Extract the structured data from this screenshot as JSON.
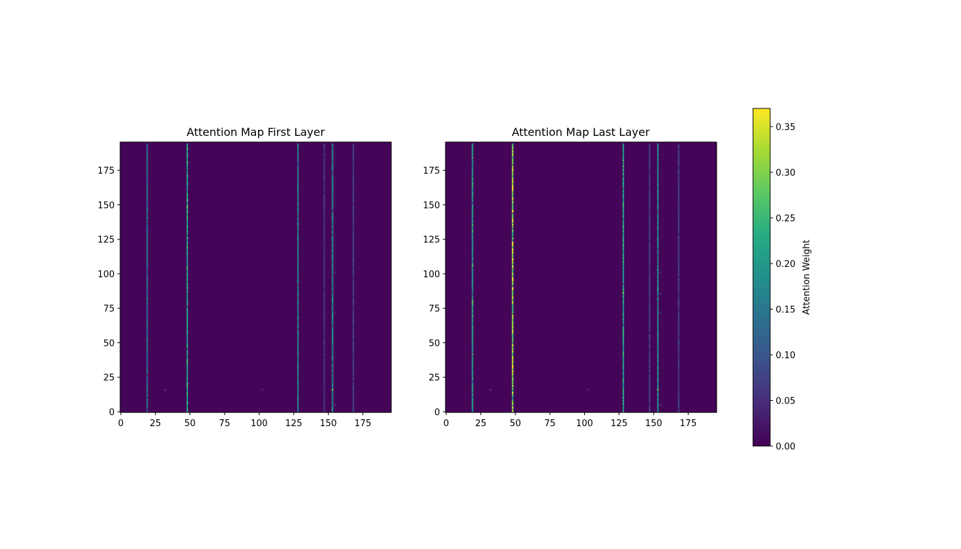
{
  "chart_data": [
    {
      "type": "heatmap",
      "title": "Attention Map First Layer",
      "xlabel": "",
      "ylabel": "",
      "size": [
        196,
        196
      ],
      "xlim": [
        -0.5,
        195.5
      ],
      "ylim": [
        195.5,
        -0.5
      ],
      "x_ticks": [
        0,
        25,
        50,
        75,
        100,
        125,
        150,
        175
      ],
      "y_ticks": [
        0,
        25,
        50,
        75,
        100,
        125,
        150,
        175
      ],
      "background_value": 0.005,
      "columns": [
        {
          "x": 19,
          "value": 0.13
        },
        {
          "x": 48,
          "value": 0.2
        },
        {
          "x": 128,
          "value": 0.15
        },
        {
          "x": 147,
          "value": 0.06
        },
        {
          "x": 153,
          "value": 0.17
        },
        {
          "x": 168,
          "value": 0.07
        }
      ],
      "spots": [
        {
          "x": 32,
          "y": 17,
          "value": 0.08
        },
        {
          "x": 102,
          "y": 17,
          "value": 0.06
        },
        {
          "x": 153,
          "y": 17,
          "value": 0.3
        },
        {
          "x": 155,
          "y": 6,
          "value": 0.06
        },
        {
          "x": 155,
          "y": 73,
          "value": 0.05
        },
        {
          "x": 155,
          "y": 102,
          "value": 0.05
        }
      ]
    },
    {
      "type": "heatmap",
      "title": "Attention Map Last Layer",
      "xlabel": "",
      "ylabel": "",
      "size": [
        196,
        196
      ],
      "xlim": [
        -0.5,
        195.5
      ],
      "ylim": [
        195.5,
        -0.5
      ],
      "x_ticks": [
        0,
        25,
        50,
        75,
        100,
        125,
        150,
        175
      ],
      "y_ticks": [
        0,
        25,
        50,
        75,
        100,
        125,
        150,
        175
      ],
      "background_value": 0.005,
      "columns": [
        {
          "x": 19,
          "value": 0.2
        },
        {
          "x": 48,
          "value": 0.3
        },
        {
          "x": 128,
          "value": 0.2
        },
        {
          "x": 147,
          "value": 0.07
        },
        {
          "x": 153,
          "value": 0.17
        },
        {
          "x": 168,
          "value": 0.07
        }
      ],
      "spots": [
        {
          "x": 32,
          "y": 17,
          "value": 0.08
        },
        {
          "x": 102,
          "y": 17,
          "value": 0.06
        },
        {
          "x": 153,
          "y": 17,
          "value": 0.3
        },
        {
          "x": 128,
          "y": 87,
          "value": 0.3
        },
        {
          "x": 155,
          "y": 6,
          "value": 0.07
        },
        {
          "x": 155,
          "y": 73,
          "value": 0.06
        },
        {
          "x": 155,
          "y": 87,
          "value": 0.06
        },
        {
          "x": 155,
          "y": 102,
          "value": 0.06
        }
      ]
    }
  ],
  "colorbar": {
    "label": "Attention Weight",
    "colormap": "viridis",
    "range": [
      0,
      0.37
    ],
    "ticks": [
      "0.00",
      "0.05",
      "0.10",
      "0.15",
      "0.20",
      "0.25",
      "0.30",
      "0.35"
    ]
  },
  "colors": {
    "background": "#440154",
    "axis": "#000000"
  }
}
